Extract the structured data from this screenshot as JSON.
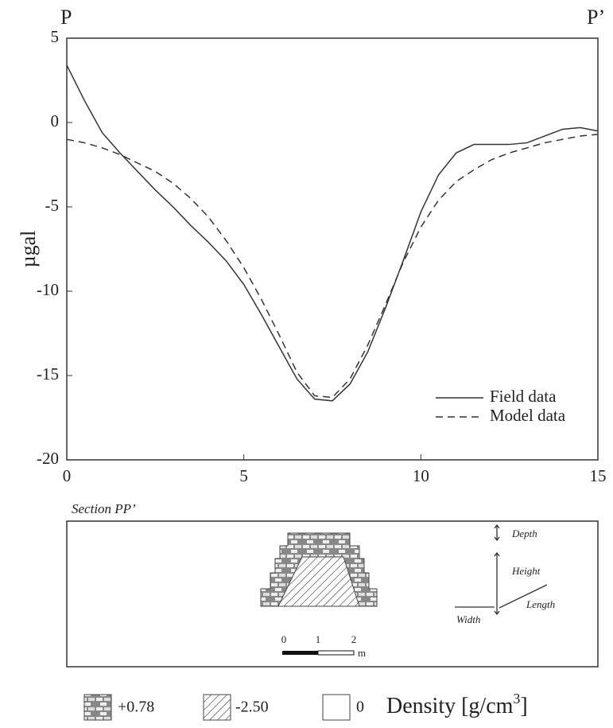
{
  "chart_data": {
    "type": "line",
    "corner_labels": [
      "P",
      "P’"
    ],
    "ylabel": "µgal",
    "x": [
      0,
      0.5,
      1,
      1.5,
      2,
      2.5,
      3,
      3.5,
      4,
      4.5,
      5,
      5.5,
      6,
      6.5,
      7,
      7.5,
      8,
      8.5,
      9,
      9.5,
      10,
      10.5,
      11,
      11.5,
      12,
      12.5,
      13,
      13.5,
      14,
      14.5,
      15
    ],
    "series": [
      {
        "name": "Field data",
        "color": "#333333",
        "dash": "solid",
        "values": [
          3.4,
          1.3,
          -0.6,
          -1.8,
          -2.9,
          -4.0,
          -5.0,
          -6.1,
          -7.1,
          -8.2,
          -9.6,
          -11.4,
          -13.3,
          -15.2,
          -16.4,
          -16.5,
          -15.5,
          -13.6,
          -11.0,
          -8.2,
          -5.3,
          -3.1,
          -1.8,
          -1.3,
          -1.3,
          -1.3,
          -1.2,
          -0.8,
          -0.4,
          -0.3,
          -0.5
        ]
      },
      {
        "name": "Model data",
        "color": "#333333",
        "dash": "dashed",
        "values": [
          -1.0,
          -1.2,
          -1.5,
          -1.9,
          -2.4,
          -2.9,
          -3.6,
          -4.5,
          -5.6,
          -7.0,
          -8.6,
          -10.5,
          -12.6,
          -14.8,
          -16.2,
          -16.3,
          -15.2,
          -13.2,
          -10.8,
          -8.3,
          -6.2,
          -4.6,
          -3.5,
          -2.8,
          -2.2,
          -1.8,
          -1.5,
          -1.2,
          -1.0,
          -0.8,
          -0.7
        ]
      }
    ],
    "xlim": [
      0,
      15
    ],
    "xticks": [
      0,
      5,
      10,
      15
    ],
    "ylim": [
      -20,
      5
    ],
    "yticks": [
      -20,
      -15,
      -10,
      -5,
      0,
      5
    ],
    "legend": "lower right"
  },
  "section": {
    "title": "Section PP’",
    "depth": "Depth",
    "height": "Height",
    "length": "Length",
    "width": "Width",
    "scale": [
      "0",
      "1",
      "2"
    ],
    "scale_unit": "m"
  },
  "density_legend": {
    "items": [
      "+0.78",
      "-2.50",
      "0"
    ],
    "label": "Density [g/cm",
    "label_sup": "3",
    "label_end": "]"
  }
}
